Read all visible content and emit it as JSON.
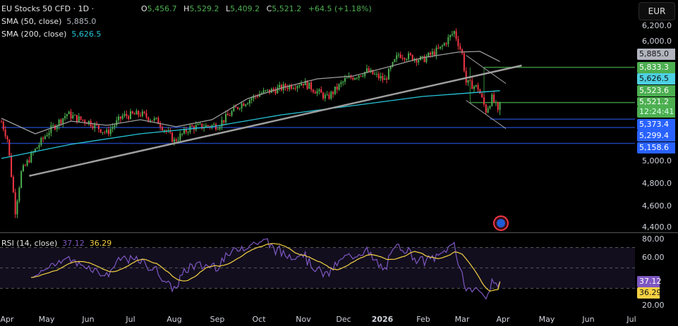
{
  "header": {
    "symbol": "EU Stocks 50 CFD · 1D ·",
    "open_label": "O",
    "open": "5,456.7",
    "high_label": "H",
    "high": "5,529.2",
    "low_label": "L",
    "low": "5,409.2",
    "close_label": "C",
    "close": "5,521.2",
    "change": "+64.5 (+1.18%)",
    "sma50_label": "SMA (50, close)",
    "sma50_value": "5,885.0",
    "sma200_label": "SMA (200, close)",
    "sma200_value": "5,626.5",
    "currency": "EUR"
  },
  "price_axis": [
    "6,200.0",
    "6,000.0",
    "5,000.0",
    "4,800.0",
    "4,600.0",
    "4,400.0"
  ],
  "price_labels": [
    {
      "text": "5,885.0",
      "bg": "#b2b5be",
      "fg": "#111"
    },
    {
      "text": "5,833.3",
      "bg": "#4caf50",
      "fg": "#fff"
    },
    {
      "text": "5,626.5",
      "bg": "#4dd0e1",
      "fg": "#111"
    },
    {
      "text": "5,523.6",
      "bg": "#4caf50",
      "fg": "#fff"
    },
    {
      "text": "5,521.2",
      "bg": "#4caf50",
      "fg": "#fff"
    },
    {
      "text": "12:24:41",
      "bg": "#4caf50",
      "fg": "#dfe"
    },
    {
      "text": "5,373.4",
      "bg": "#2962ff",
      "fg": "#fff"
    },
    {
      "text": "5,299.4",
      "bg": "#2962ff",
      "fg": "#fff"
    },
    {
      "text": "5,158.6",
      "bg": "#2962ff",
      "fg": "#fff"
    }
  ],
  "rsi": {
    "label": "RSI (14, close)",
    "value": "37.12",
    "ma_value": "36.29",
    "axis": [
      "80.00",
      "60.00",
      "20.00"
    ],
    "color": "#7e57c2",
    "ma_color": "#f5d142"
  },
  "time_axis": [
    "Apr",
    "May",
    "Jun",
    "Jul",
    "Aug",
    "Sep",
    "Oct",
    "Nov",
    "Dec",
    "2026",
    "Feb",
    "Mar",
    "Apr",
    "May",
    "Jun",
    "Jul"
  ],
  "chart_data": {
    "type": "candlestick",
    "title": "EU Stocks 50 CFD · 1D",
    "ylim": [
      4400,
      6250
    ],
    "colors": {
      "up": "#4caf50",
      "down": "#f23645",
      "sma50": "#9e9e9e",
      "sma200": "#26c6da",
      "trend": "#9e9e9e"
    },
    "close_waypoints": [
      [
        0,
        5350
      ],
      [
        3,
        5200
      ],
      [
        7,
        4560
      ],
      [
        10,
        4900
      ],
      [
        15,
        5050
      ],
      [
        23,
        5250
      ],
      [
        33,
        5420
      ],
      [
        38,
        5380
      ],
      [
        44,
        5350
      ],
      [
        53,
        5250
      ],
      [
        61,
        5400
      ],
      [
        70,
        5420
      ],
      [
        79,
        5350
      ],
      [
        87,
        5180
      ],
      [
        95,
        5300
      ],
      [
        109,
        5320
      ],
      [
        120,
        5500
      ],
      [
        130,
        5600
      ],
      [
        141,
        5650
      ],
      [
        152,
        5700
      ],
      [
        164,
        5560
      ],
      [
        173,
        5720
      ],
      [
        184,
        5800
      ],
      [
        193,
        5720
      ],
      [
        200,
        5950
      ],
      [
        212,
        5900
      ],
      [
        221,
        6000
      ],
      [
        228,
        6150
      ],
      [
        232,
        5950
      ],
      [
        234,
        5700
      ],
      [
        240,
        5650
      ],
      [
        244,
        5450
      ],
      [
        247,
        5560
      ],
      [
        250,
        5456.7
      ],
      [
        251,
        5521.2
      ]
    ],
    "sma50": [
      [
        0,
        5381
      ],
      [
        17,
        5244
      ],
      [
        35,
        5356
      ],
      [
        53,
        5319
      ],
      [
        70,
        5369
      ],
      [
        88,
        5306
      ],
      [
        106,
        5369
      ],
      [
        124,
        5556
      ],
      [
        141,
        5650
      ],
      [
        159,
        5731
      ],
      [
        177,
        5756
      ],
      [
        195,
        5838
      ],
      [
        212,
        5919
      ],
      [
        230,
        5969
      ],
      [
        241,
        5975
      ],
      [
        251,
        5885
      ]
    ],
    "sma200": [
      [
        0,
        5025
      ],
      [
        35,
        5150
      ],
      [
        70,
        5244
      ],
      [
        106,
        5306
      ],
      [
        141,
        5412
      ],
      [
        177,
        5494
      ],
      [
        212,
        5575
      ],
      [
        251,
        5626.5
      ]
    ],
    "trendline": [
      [
        14,
        4870
      ],
      [
        262,
        5850
      ]
    ],
    "horizontal_levels": [
      {
        "value": 5833.3,
        "color": "#388e3c",
        "from": 243
      },
      {
        "value": 5521.2,
        "color": "#388e3c",
        "from": 236
      },
      {
        "value": 5373.4,
        "color": "#1e3ea8",
        "from": 246
      },
      {
        "value": 5299.4,
        "color": "#1e3ea8",
        "from": 0
      },
      {
        "value": 5158.6,
        "color": "#1e3ea8",
        "from": 0
      }
    ],
    "channel": [
      [
        [
          234,
          5940
        ],
        [
          254,
          5690
        ]
      ],
      [
        [
          234,
          5540
        ],
        [
          254,
          5290
        ]
      ]
    ],
    "rsi_levels": [
      70,
      50,
      30
    ],
    "rsi_last": 37.12,
    "rsi_ma_last": 36.29
  }
}
